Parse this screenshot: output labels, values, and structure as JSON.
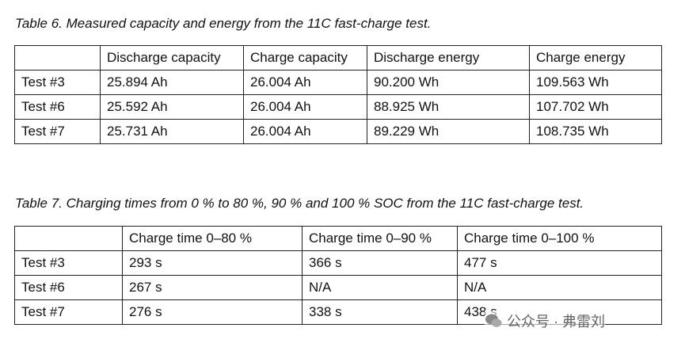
{
  "tables": [
    {
      "caption": "Table 6. Measured capacity and energy from the 11C fast-charge test.",
      "header": [
        "Discharge capacity",
        "Charge capacity",
        "Discharge energy",
        "Charge energy"
      ],
      "rows": [
        [
          "Test #3",
          "25.894 Ah",
          "26.004 Ah",
          "90.200 Wh",
          "109.563 Wh"
        ],
        [
          "Test #6",
          "25.592 Ah",
          "26.004 Ah",
          "88.925 Wh",
          "107.702 Wh"
        ],
        [
          "Test #7",
          "25.731 Ah",
          "26.004 Ah",
          "89.229 Wh",
          "108.735 Wh"
        ]
      ]
    },
    {
      "caption": "Table 7. Charging times from 0 % to 80 %, 90 % and 100 % SOC from the 11C fast-charge test.",
      "header": [
        "Charge time 0–80 %",
        "Charge time 0–90 %",
        "Charge time 0–100 %"
      ],
      "rows": [
        [
          "Test #3",
          "293 s",
          "366 s",
          "477 s"
        ],
        [
          "Test #6",
          "267 s",
          "N/A",
          "N/A"
        ],
        [
          "Test #7",
          "276 s",
          "338 s",
          "438 s"
        ]
      ]
    }
  ],
  "watermark": "公众号 · 弗雷刘"
}
